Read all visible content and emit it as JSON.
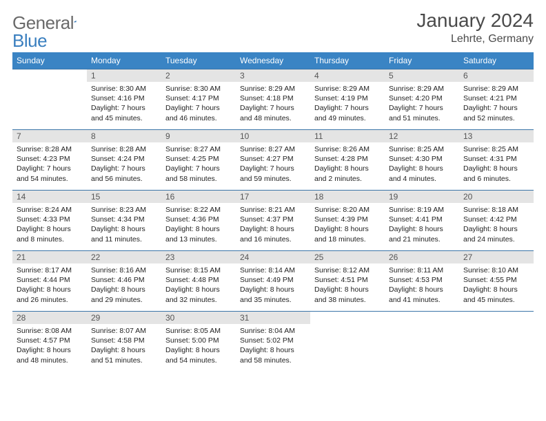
{
  "brand": {
    "text1": "General",
    "text2": "Blue",
    "icon_color": "#3a7fbf"
  },
  "title": "January 2024",
  "location": "Lehrte, Germany",
  "colors": {
    "header_bg": "#3a84c4",
    "header_text": "#ffffff",
    "row_sep": "#3a74a8",
    "daynum_bg": "#e4e4e4",
    "text": "#222222",
    "page_bg": "#ffffff"
  },
  "weekdays": [
    "Sunday",
    "Monday",
    "Tuesday",
    "Wednesday",
    "Thursday",
    "Friday",
    "Saturday"
  ],
  "weeks": [
    [
      null,
      {
        "n": "1",
        "sr": "Sunrise: 8:30 AM",
        "ss": "Sunset: 4:16 PM",
        "dl": "Daylight: 7 hours and 45 minutes."
      },
      {
        "n": "2",
        "sr": "Sunrise: 8:30 AM",
        "ss": "Sunset: 4:17 PM",
        "dl": "Daylight: 7 hours and 46 minutes."
      },
      {
        "n": "3",
        "sr": "Sunrise: 8:29 AM",
        "ss": "Sunset: 4:18 PM",
        "dl": "Daylight: 7 hours and 48 minutes."
      },
      {
        "n": "4",
        "sr": "Sunrise: 8:29 AM",
        "ss": "Sunset: 4:19 PM",
        "dl": "Daylight: 7 hours and 49 minutes."
      },
      {
        "n": "5",
        "sr": "Sunrise: 8:29 AM",
        "ss": "Sunset: 4:20 PM",
        "dl": "Daylight: 7 hours and 51 minutes."
      },
      {
        "n": "6",
        "sr": "Sunrise: 8:29 AM",
        "ss": "Sunset: 4:21 PM",
        "dl": "Daylight: 7 hours and 52 minutes."
      }
    ],
    [
      {
        "n": "7",
        "sr": "Sunrise: 8:28 AM",
        "ss": "Sunset: 4:23 PM",
        "dl": "Daylight: 7 hours and 54 minutes."
      },
      {
        "n": "8",
        "sr": "Sunrise: 8:28 AM",
        "ss": "Sunset: 4:24 PM",
        "dl": "Daylight: 7 hours and 56 minutes."
      },
      {
        "n": "9",
        "sr": "Sunrise: 8:27 AM",
        "ss": "Sunset: 4:25 PM",
        "dl": "Daylight: 7 hours and 58 minutes."
      },
      {
        "n": "10",
        "sr": "Sunrise: 8:27 AM",
        "ss": "Sunset: 4:27 PM",
        "dl": "Daylight: 7 hours and 59 minutes."
      },
      {
        "n": "11",
        "sr": "Sunrise: 8:26 AM",
        "ss": "Sunset: 4:28 PM",
        "dl": "Daylight: 8 hours and 2 minutes."
      },
      {
        "n": "12",
        "sr": "Sunrise: 8:25 AM",
        "ss": "Sunset: 4:30 PM",
        "dl": "Daylight: 8 hours and 4 minutes."
      },
      {
        "n": "13",
        "sr": "Sunrise: 8:25 AM",
        "ss": "Sunset: 4:31 PM",
        "dl": "Daylight: 8 hours and 6 minutes."
      }
    ],
    [
      {
        "n": "14",
        "sr": "Sunrise: 8:24 AM",
        "ss": "Sunset: 4:33 PM",
        "dl": "Daylight: 8 hours and 8 minutes."
      },
      {
        "n": "15",
        "sr": "Sunrise: 8:23 AM",
        "ss": "Sunset: 4:34 PM",
        "dl": "Daylight: 8 hours and 11 minutes."
      },
      {
        "n": "16",
        "sr": "Sunrise: 8:22 AM",
        "ss": "Sunset: 4:36 PM",
        "dl": "Daylight: 8 hours and 13 minutes."
      },
      {
        "n": "17",
        "sr": "Sunrise: 8:21 AM",
        "ss": "Sunset: 4:37 PM",
        "dl": "Daylight: 8 hours and 16 minutes."
      },
      {
        "n": "18",
        "sr": "Sunrise: 8:20 AM",
        "ss": "Sunset: 4:39 PM",
        "dl": "Daylight: 8 hours and 18 minutes."
      },
      {
        "n": "19",
        "sr": "Sunrise: 8:19 AM",
        "ss": "Sunset: 4:41 PM",
        "dl": "Daylight: 8 hours and 21 minutes."
      },
      {
        "n": "20",
        "sr": "Sunrise: 8:18 AM",
        "ss": "Sunset: 4:42 PM",
        "dl": "Daylight: 8 hours and 24 minutes."
      }
    ],
    [
      {
        "n": "21",
        "sr": "Sunrise: 8:17 AM",
        "ss": "Sunset: 4:44 PM",
        "dl": "Daylight: 8 hours and 26 minutes."
      },
      {
        "n": "22",
        "sr": "Sunrise: 8:16 AM",
        "ss": "Sunset: 4:46 PM",
        "dl": "Daylight: 8 hours and 29 minutes."
      },
      {
        "n": "23",
        "sr": "Sunrise: 8:15 AM",
        "ss": "Sunset: 4:48 PM",
        "dl": "Daylight: 8 hours and 32 minutes."
      },
      {
        "n": "24",
        "sr": "Sunrise: 8:14 AM",
        "ss": "Sunset: 4:49 PM",
        "dl": "Daylight: 8 hours and 35 minutes."
      },
      {
        "n": "25",
        "sr": "Sunrise: 8:12 AM",
        "ss": "Sunset: 4:51 PM",
        "dl": "Daylight: 8 hours and 38 minutes."
      },
      {
        "n": "26",
        "sr": "Sunrise: 8:11 AM",
        "ss": "Sunset: 4:53 PM",
        "dl": "Daylight: 8 hours and 41 minutes."
      },
      {
        "n": "27",
        "sr": "Sunrise: 8:10 AM",
        "ss": "Sunset: 4:55 PM",
        "dl": "Daylight: 8 hours and 45 minutes."
      }
    ],
    [
      {
        "n": "28",
        "sr": "Sunrise: 8:08 AM",
        "ss": "Sunset: 4:57 PM",
        "dl": "Daylight: 8 hours and 48 minutes."
      },
      {
        "n": "29",
        "sr": "Sunrise: 8:07 AM",
        "ss": "Sunset: 4:58 PM",
        "dl": "Daylight: 8 hours and 51 minutes."
      },
      {
        "n": "30",
        "sr": "Sunrise: 8:05 AM",
        "ss": "Sunset: 5:00 PM",
        "dl": "Daylight: 8 hours and 54 minutes."
      },
      {
        "n": "31",
        "sr": "Sunrise: 8:04 AM",
        "ss": "Sunset: 5:02 PM",
        "dl": "Daylight: 8 hours and 58 minutes."
      },
      null,
      null,
      null
    ]
  ]
}
